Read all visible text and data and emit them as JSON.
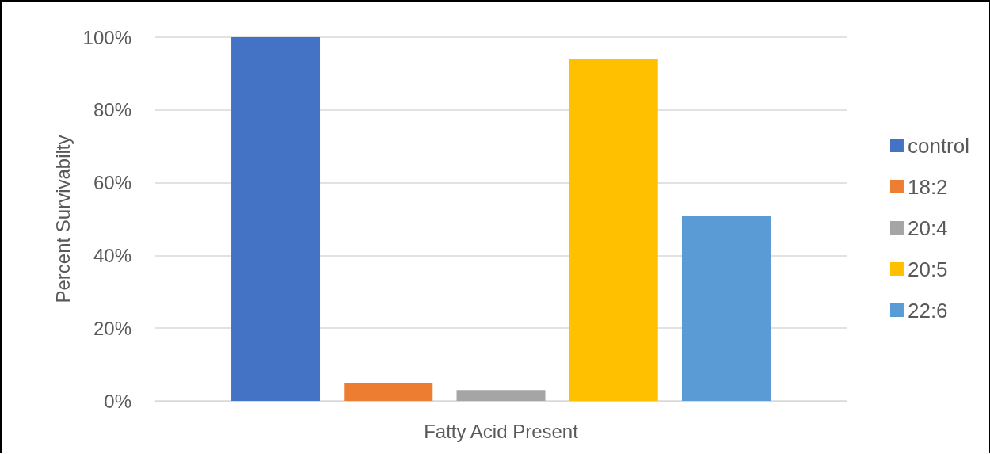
{
  "chart_data": {
    "type": "bar",
    "xlabel": "Fatty Acid Present",
    "ylabel": "Percent Survivabilty",
    "categories": [
      null
    ],
    "series": [
      {
        "name": "control",
        "color": "#4472c4",
        "values": [
          100
        ]
      },
      {
        "name": "18:2",
        "color": "#ed7d31",
        "values": [
          5
        ]
      },
      {
        "name": "20:4",
        "color": "#a5a5a5",
        "values": [
          3
        ]
      },
      {
        "name": "20:5",
        "color": "#ffc000",
        "values": [
          94
        ]
      },
      {
        "name": "22:6",
        "color": "#5b9bd5",
        "values": [
          51
        ]
      }
    ],
    "ylim": [
      0,
      100
    ],
    "yticks": [
      {
        "value": 0,
        "label": "0%"
      },
      {
        "value": 20,
        "label": "20%"
      },
      {
        "value": 40,
        "label": "40%"
      },
      {
        "value": 60,
        "label": "60%"
      },
      {
        "value": 80,
        "label": "80%"
      },
      {
        "value": 100,
        "label": "100%"
      }
    ],
    "grid": "y",
    "legend": "right"
  }
}
